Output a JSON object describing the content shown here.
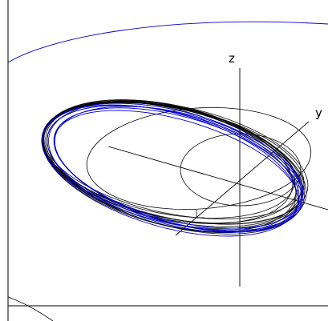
{
  "axes": {
    "z_label": "z",
    "y_label": "y"
  },
  "colors": {
    "black_trajectory": "#000000",
    "blue_trajectory": "#0000cc",
    "background": "#ffffff"
  }
}
